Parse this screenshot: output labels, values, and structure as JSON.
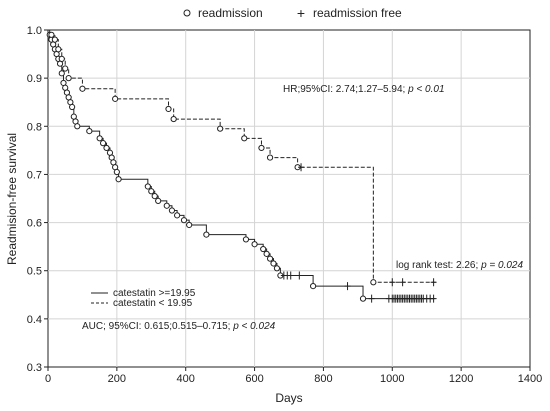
{
  "chart_data": {
    "type": "line",
    "subtype": "kaplan-meier",
    "title": "",
    "xlabel": "Days",
    "ylabel": "Readmision-free survival",
    "xlim": [
      0,
      1400
    ],
    "ylim": [
      0.3,
      1.0
    ],
    "xticks": [
      0,
      200,
      400,
      600,
      800,
      1000,
      1200,
      1400
    ],
    "yticks": [
      0.3,
      0.4,
      0.5,
      0.6,
      0.7,
      0.8,
      0.9,
      1.0
    ],
    "xtick_labels": [
      "0",
      "200",
      "400",
      "600",
      "800",
      "1000",
      "1200",
      "1400"
    ],
    "ytick_labels": [
      "0.3",
      "0.4",
      "0.5",
      "0.6",
      "0.7",
      "0.8",
      "0.9",
      "1.0"
    ],
    "grid": true,
    "marker_legend": {
      "event_symbol": "○",
      "event_label": "readmission",
      "censor_symbol": "+",
      "censor_label": "readmission free"
    },
    "series": [
      {
        "name": "catestatin >=19.95",
        "style": "solid",
        "steps": [
          [
            0,
            1.0
          ],
          [
            5,
            0.99
          ],
          [
            10,
            0.98
          ],
          [
            15,
            0.97
          ],
          [
            20,
            0.96
          ],
          [
            25,
            0.95
          ],
          [
            30,
            0.94
          ],
          [
            35,
            0.93
          ],
          [
            40,
            0.91
          ],
          [
            45,
            0.89
          ],
          [
            50,
            0.88
          ],
          [
            55,
            0.87
          ],
          [
            60,
            0.86
          ],
          [
            65,
            0.85
          ],
          [
            70,
            0.84
          ],
          [
            75,
            0.82
          ],
          [
            80,
            0.81
          ],
          [
            85,
            0.8
          ],
          [
            120,
            0.79
          ],
          [
            150,
            0.775
          ],
          [
            160,
            0.765
          ],
          [
            170,
            0.755
          ],
          [
            180,
            0.745
          ],
          [
            185,
            0.735
          ],
          [
            190,
            0.725
          ],
          [
            195,
            0.715
          ],
          [
            200,
            0.705
          ],
          [
            205,
            0.69
          ],
          [
            290,
            0.675
          ],
          [
            300,
            0.665
          ],
          [
            310,
            0.655
          ],
          [
            320,
            0.645
          ],
          [
            345,
            0.635
          ],
          [
            360,
            0.625
          ],
          [
            375,
            0.615
          ],
          [
            395,
            0.605
          ],
          [
            410,
            0.595
          ],
          [
            460,
            0.575
          ],
          [
            575,
            0.565
          ],
          [
            600,
            0.555
          ],
          [
            625,
            0.545
          ],
          [
            635,
            0.535
          ],
          [
            645,
            0.525
          ],
          [
            655,
            0.515
          ],
          [
            665,
            0.505
          ],
          [
            675,
            0.49
          ],
          [
            770,
            0.468
          ],
          [
            915,
            0.442
          ],
          [
            1125,
            0.442
          ]
        ],
        "events": [
          [
            5,
            0.99
          ],
          [
            10,
            0.98
          ],
          [
            15,
            0.97
          ],
          [
            20,
            0.96
          ],
          [
            25,
            0.95
          ],
          [
            30,
            0.94
          ],
          [
            35,
            0.93
          ],
          [
            40,
            0.91
          ],
          [
            45,
            0.89
          ],
          [
            50,
            0.88
          ],
          [
            55,
            0.87
          ],
          [
            60,
            0.86
          ],
          [
            65,
            0.85
          ],
          [
            70,
            0.84
          ],
          [
            75,
            0.82
          ],
          [
            80,
            0.81
          ],
          [
            85,
            0.8
          ],
          [
            120,
            0.79
          ],
          [
            150,
            0.775
          ],
          [
            160,
            0.765
          ],
          [
            170,
            0.755
          ],
          [
            180,
            0.745
          ],
          [
            185,
            0.735
          ],
          [
            190,
            0.725
          ],
          [
            195,
            0.715
          ],
          [
            200,
            0.705
          ],
          [
            205,
            0.69
          ],
          [
            290,
            0.675
          ],
          [
            300,
            0.665
          ],
          [
            310,
            0.655
          ],
          [
            320,
            0.645
          ],
          [
            345,
            0.635
          ],
          [
            360,
            0.625
          ],
          [
            375,
            0.615
          ],
          [
            395,
            0.605
          ],
          [
            410,
            0.595
          ],
          [
            460,
            0.575
          ],
          [
            575,
            0.565
          ],
          [
            600,
            0.555
          ],
          [
            625,
            0.545
          ],
          [
            635,
            0.535
          ],
          [
            645,
            0.525
          ],
          [
            655,
            0.515
          ],
          [
            665,
            0.505
          ],
          [
            675,
            0.49
          ],
          [
            770,
            0.468
          ],
          [
            915,
            0.442
          ]
        ],
        "censored": [
          [
            685,
            0.49
          ],
          [
            695,
            0.49
          ],
          [
            705,
            0.49
          ],
          [
            730,
            0.49
          ],
          [
            870,
            0.468
          ],
          [
            940,
            0.442
          ],
          [
            990,
            0.442
          ],
          [
            1000,
            0.442
          ],
          [
            1005,
            0.442
          ],
          [
            1010,
            0.442
          ],
          [
            1015,
            0.442
          ],
          [
            1020,
            0.442
          ],
          [
            1025,
            0.442
          ],
          [
            1030,
            0.442
          ],
          [
            1035,
            0.442
          ],
          [
            1040,
            0.442
          ],
          [
            1045,
            0.442
          ],
          [
            1050,
            0.442
          ],
          [
            1055,
            0.442
          ],
          [
            1060,
            0.442
          ],
          [
            1065,
            0.442
          ],
          [
            1070,
            0.442
          ],
          [
            1075,
            0.442
          ],
          [
            1080,
            0.442
          ],
          [
            1085,
            0.442
          ],
          [
            1090,
            0.442
          ],
          [
            1100,
            0.442
          ],
          [
            1110,
            0.442
          ],
          [
            1120,
            0.442
          ]
        ]
      },
      {
        "name": "catestatin < 19.95",
        "style": "dashed",
        "steps": [
          [
            0,
            1.0
          ],
          [
            10,
            0.99
          ],
          [
            20,
            0.98
          ],
          [
            30,
            0.96
          ],
          [
            40,
            0.94
          ],
          [
            50,
            0.92
          ],
          [
            60,
            0.9
          ],
          [
            100,
            0.878
          ],
          [
            195,
            0.857
          ],
          [
            350,
            0.836
          ],
          [
            365,
            0.815
          ],
          [
            500,
            0.795
          ],
          [
            570,
            0.775
          ],
          [
            620,
            0.755
          ],
          [
            645,
            0.735
          ],
          [
            725,
            0.715
          ],
          [
            945,
            0.476
          ],
          [
            1130,
            0.476
          ]
        ],
        "events": [
          [
            10,
            0.99
          ],
          [
            20,
            0.98
          ],
          [
            30,
            0.96
          ],
          [
            40,
            0.94
          ],
          [
            50,
            0.92
          ],
          [
            60,
            0.9
          ],
          [
            100,
            0.878
          ],
          [
            195,
            0.857
          ],
          [
            350,
            0.836
          ],
          [
            365,
            0.815
          ],
          [
            500,
            0.795
          ],
          [
            570,
            0.775
          ],
          [
            620,
            0.755
          ],
          [
            645,
            0.735
          ],
          [
            725,
            0.715
          ],
          [
            945,
            0.476
          ]
        ],
        "censored": [
          [
            735,
            0.715
          ],
          [
            1000,
            0.476
          ],
          [
            1030,
            0.476
          ],
          [
            1120,
            0.476
          ]
        ]
      }
    ],
    "annotations": {
      "hr_prefix": "HR;95%CI: 2.74;1.27–5.94; ",
      "hr_p": "p < 0.01",
      "logrank_prefix": "log rank test: 2.26; ",
      "logrank_p": "p = 0.024",
      "auc_prefix": "AUC; 95%CI: 0.615;0.515–0.715; ",
      "auc_p": "p < 0.024"
    },
    "inner_legend_labels": [
      "catestatin >=19.95",
      "catestatin < 19.95"
    ]
  }
}
